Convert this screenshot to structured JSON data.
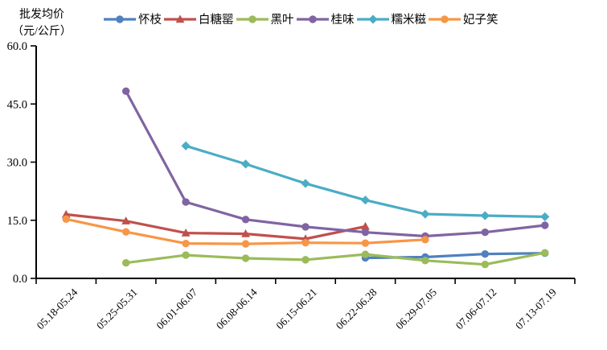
{
  "axis_title": {
    "line1": "批发均价",
    "line2": "（元/公斤）"
  },
  "chart_data": {
    "type": "line",
    "title": "",
    "ylabel": "批发均价（元/公斤）",
    "xlabel": "",
    "ylim": [
      0,
      60
    ],
    "ytick_interval": 15,
    "ytick_labels": [
      "0.0",
      "15.0",
      "30.0",
      "45.0",
      "60.0"
    ],
    "grid": false,
    "legend_position": "top",
    "axis_color": "#000000",
    "categories": [
      "05.18-05.24",
      "05.25-05.31",
      "06.01-06.07",
      "06.08-06.14",
      "06.15-06.21",
      "06.22-06.28",
      "06.29-07.05",
      "07.06-07.12",
      "07.13-07.19"
    ],
    "series": [
      {
        "name": "怀枝",
        "color": "#4F81BD",
        "marker": "circle",
        "values": [
          null,
          null,
          null,
          null,
          null,
          5.3,
          5.5,
          6.3,
          6.5
        ]
      },
      {
        "name": "白糖罂",
        "color": "#C0504D",
        "marker": "triangle",
        "values": [
          16.5,
          14.8,
          11.7,
          11.5,
          10.2,
          13.4,
          null,
          null,
          null
        ]
      },
      {
        "name": "黑叶",
        "color": "#9BBB59",
        "marker": "circle",
        "values": [
          null,
          4.0,
          6.0,
          5.2,
          4.8,
          6.2,
          4.6,
          3.6,
          6.6
        ]
      },
      {
        "name": "桂味",
        "color": "#8064A2",
        "marker": "circle",
        "values": [
          null,
          48.3,
          19.7,
          15.2,
          13.3,
          11.9,
          10.9,
          11.9,
          13.7
        ]
      },
      {
        "name": "糯米糍",
        "color": "#4BACC6",
        "marker": "diamond",
        "values": [
          null,
          null,
          34.2,
          29.5,
          24.5,
          20.2,
          16.6,
          16.2,
          15.9
        ]
      },
      {
        "name": "妃子笑",
        "color": "#F79646",
        "marker": "circle",
        "values": [
          15.3,
          12.0,
          9.0,
          8.9,
          9.2,
          9.1,
          10.0,
          null,
          null
        ]
      }
    ]
  }
}
